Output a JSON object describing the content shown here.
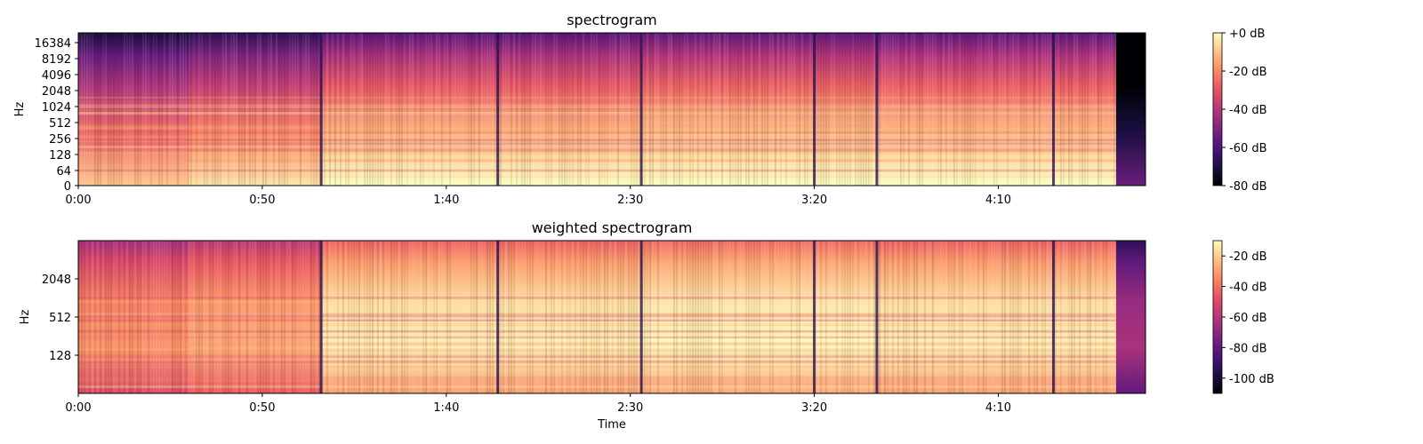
{
  "chart_data": [
    {
      "type": "heatmap",
      "title": "spectrogram",
      "xlabel": "",
      "ylabel": "Hz",
      "x_unit": "seconds",
      "x_range": [
        0,
        290
      ],
      "x_ticks": [
        {
          "value": 0,
          "label": "0:00"
        },
        {
          "value": 50,
          "label": "0:50"
        },
        {
          "value": 100,
          "label": "1:40"
        },
        {
          "value": 150,
          "label": "2:30"
        },
        {
          "value": 200,
          "label": "3:20"
        },
        {
          "value": 250,
          "label": "4:10"
        }
      ],
      "y_scale": "log2",
      "y_range": [
        0,
        22050
      ],
      "y_ticks": [
        {
          "value": 0,
          "label": "0"
        },
        {
          "value": 64,
          "label": "64"
        },
        {
          "value": 128,
          "label": "128"
        },
        {
          "value": 256,
          "label": "256"
        },
        {
          "value": 512,
          "label": "512"
        },
        {
          "value": 1024,
          "label": "1024"
        },
        {
          "value": 2048,
          "label": "2048"
        },
        {
          "value": 4096,
          "label": "4096"
        },
        {
          "value": 8192,
          "label": "8192"
        },
        {
          "value": 16384,
          "label": "16384"
        }
      ],
      "colormap": "magma",
      "colorbar": {
        "range_db": [
          -80,
          0
        ],
        "ticks": [
          {
            "value": 0,
            "label": "+0 dB"
          },
          {
            "value": -20,
            "label": "-20 dB"
          },
          {
            "value": -40,
            "label": "-40 dB"
          },
          {
            "value": -60,
            "label": "-60 dB"
          },
          {
            "value": -80,
            "label": "-80 dB"
          }
        ]
      },
      "segments": [
        {
          "start": 0,
          "end": 30,
          "level_db": -35
        },
        {
          "start": 30,
          "end": 66,
          "level_db": -30
        },
        {
          "start": 66,
          "end": 152,
          "level_db": -22
        },
        {
          "start": 152,
          "end": 217,
          "level_db": -20
        },
        {
          "start": 217,
          "end": 282,
          "level_db": -21
        },
        {
          "start": 282,
          "end": 290,
          "level_db": -80
        }
      ],
      "dips_s": [
        66,
        114,
        153,
        200,
        217,
        265
      ]
    },
    {
      "type": "heatmap",
      "title": "weighted spectrogram",
      "xlabel": "Time",
      "ylabel": "Hz",
      "x_unit": "seconds",
      "x_range": [
        0,
        290
      ],
      "x_ticks": [
        {
          "value": 0,
          "label": "0:00"
        },
        {
          "value": 50,
          "label": "0:50"
        },
        {
          "value": 100,
          "label": "1:40"
        },
        {
          "value": 150,
          "label": "2:30"
        },
        {
          "value": 200,
          "label": "3:20"
        },
        {
          "value": 250,
          "label": "4:10"
        }
      ],
      "y_scale": "log2",
      "y_range": [
        32,
        8192
      ],
      "y_ticks": [
        {
          "value": 128,
          "label": "128"
        },
        {
          "value": 512,
          "label": "512"
        },
        {
          "value": 2048,
          "label": "2048"
        }
      ],
      "colormap": "magma",
      "colorbar": {
        "range_db": [
          -110,
          -10
        ],
        "ticks": [
          {
            "value": -20,
            "label": "-20 dB"
          },
          {
            "value": -40,
            "label": "-40 dB"
          },
          {
            "value": -60,
            "label": "-60 dB"
          },
          {
            "value": -80,
            "label": "-80 dB"
          },
          {
            "value": -100,
            "label": "-100 dB"
          }
        ]
      },
      "segments": [
        {
          "start": 0,
          "end": 30,
          "level_db": -55
        },
        {
          "start": 30,
          "end": 66,
          "level_db": -50
        },
        {
          "start": 66,
          "end": 152,
          "level_db": -35
        },
        {
          "start": 152,
          "end": 217,
          "level_db": -33
        },
        {
          "start": 217,
          "end": 282,
          "level_db": -35
        },
        {
          "start": 282,
          "end": 290,
          "level_db": -85
        }
      ],
      "dips_s": [
        66,
        114,
        153,
        200,
        217,
        265
      ]
    }
  ]
}
